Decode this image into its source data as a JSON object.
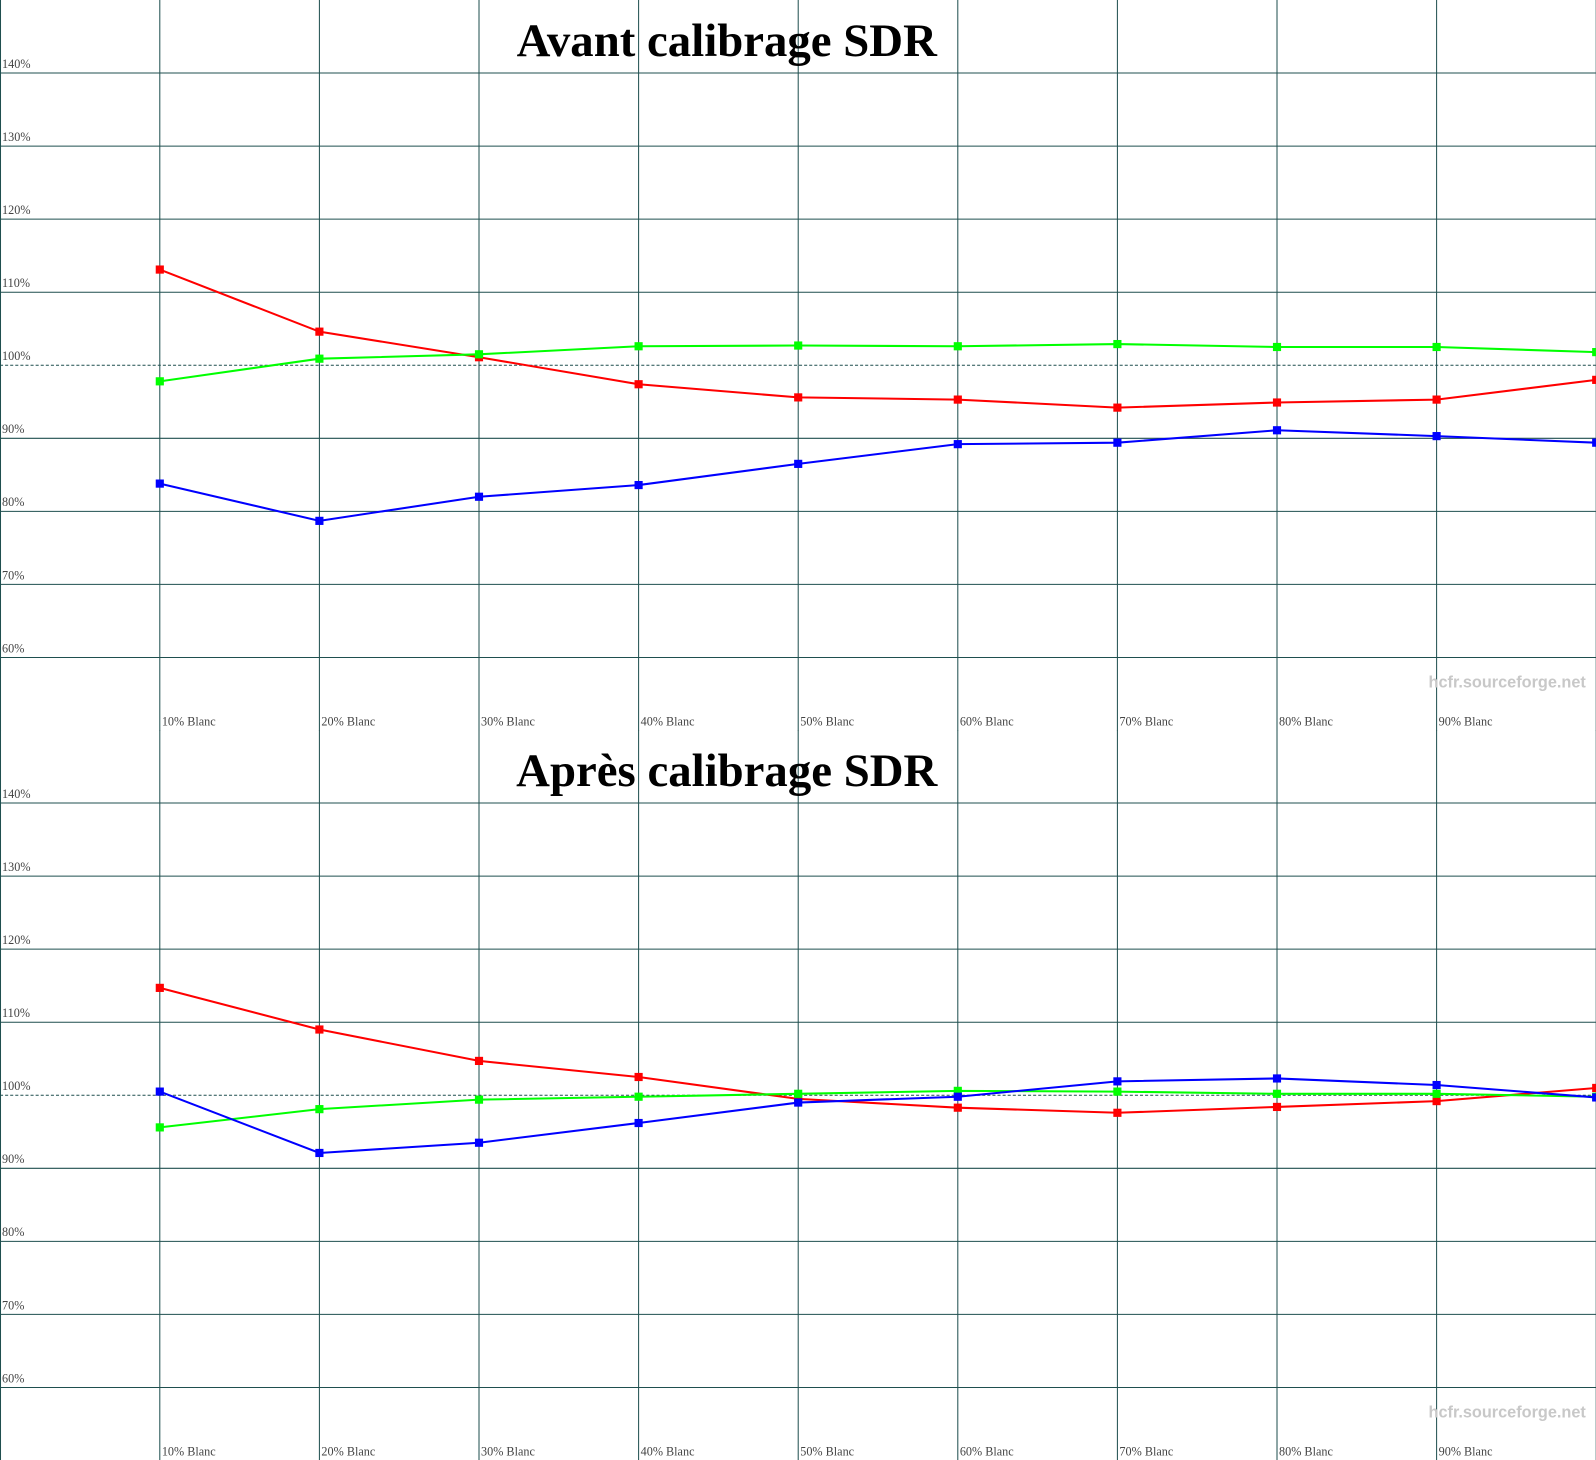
{
  "chart_data": [
    {
      "type": "line",
      "title": "Avant calibrage SDR",
      "watermark": "hcfr.sourceforge.net",
      "categories": [
        "10% Blanc",
        "20% Blanc",
        "30% Blanc",
        "40% Blanc",
        "50% Blanc",
        "60% Blanc",
        "70% Blanc",
        "80% Blanc",
        "90% Blanc",
        null
      ],
      "ylim": [
        50,
        150
      ],
      "yticks": [
        {
          "value": 60,
          "label": "60%"
        },
        {
          "value": 70,
          "label": "70%"
        },
        {
          "value": 80,
          "label": "80%"
        },
        {
          "value": 90,
          "label": "90%"
        },
        {
          "value": 100,
          "label": "100%"
        },
        {
          "value": 110,
          "label": "110%"
        },
        {
          "value": 120,
          "label": "120%"
        },
        {
          "value": 130,
          "label": "130%"
        },
        {
          "value": 140,
          "label": "140%"
        }
      ],
      "reference_line": 100,
      "grid": true,
      "series": [
        {
          "color": "#ff0000",
          "values": [
            113.1,
            104.6,
            101.1,
            97.4,
            95.6,
            95.3,
            94.2,
            94.9,
            95.3,
            98.0
          ]
        },
        {
          "color": "#00ff00",
          "values": [
            97.8,
            100.9,
            101.5,
            102.6,
            102.7,
            102.6,
            102.9,
            102.5,
            102.5,
            101.8
          ]
        },
        {
          "color": "#0000ff",
          "values": [
            83.8,
            78.7,
            82.0,
            83.6,
            86.5,
            89.2,
            89.4,
            91.1,
            90.3,
            89.4
          ]
        }
      ]
    },
    {
      "type": "line",
      "title": "Après calibrage SDR",
      "watermark": "hcfr.sourceforge.net",
      "categories": [
        "10% Blanc",
        "20% Blanc",
        "30% Blanc",
        "40% Blanc",
        "50% Blanc",
        "60% Blanc",
        "70% Blanc",
        "80% Blanc",
        "90% Blanc",
        null
      ],
      "ylim": [
        50,
        150
      ],
      "yticks": [
        {
          "value": 60,
          "label": "60%"
        },
        {
          "value": 70,
          "label": "70%"
        },
        {
          "value": 80,
          "label": "80%"
        },
        {
          "value": 90,
          "label": "90%"
        },
        {
          "value": 100,
          "label": "100%"
        },
        {
          "value": 110,
          "label": "110%"
        },
        {
          "value": 120,
          "label": "120%"
        },
        {
          "value": 130,
          "label": "130%"
        },
        {
          "value": 140,
          "label": "140%"
        }
      ],
      "reference_line": 100,
      "grid": true,
      "series": [
        {
          "color": "#ff0000",
          "values": [
            114.7,
            109.0,
            104.7,
            102.5,
            99.5,
            98.3,
            97.6,
            98.4,
            99.2,
            101.0
          ]
        },
        {
          "color": "#00ff00",
          "values": [
            95.6,
            98.1,
            99.4,
            99.8,
            100.2,
            100.6,
            100.5,
            100.2,
            100.2,
            99.8
          ]
        },
        {
          "color": "#0000ff",
          "values": [
            100.5,
            92.1,
            93.5,
            96.2,
            99.0,
            99.8,
            101.9,
            102.3,
            101.4,
            99.7
          ]
        }
      ]
    }
  ]
}
